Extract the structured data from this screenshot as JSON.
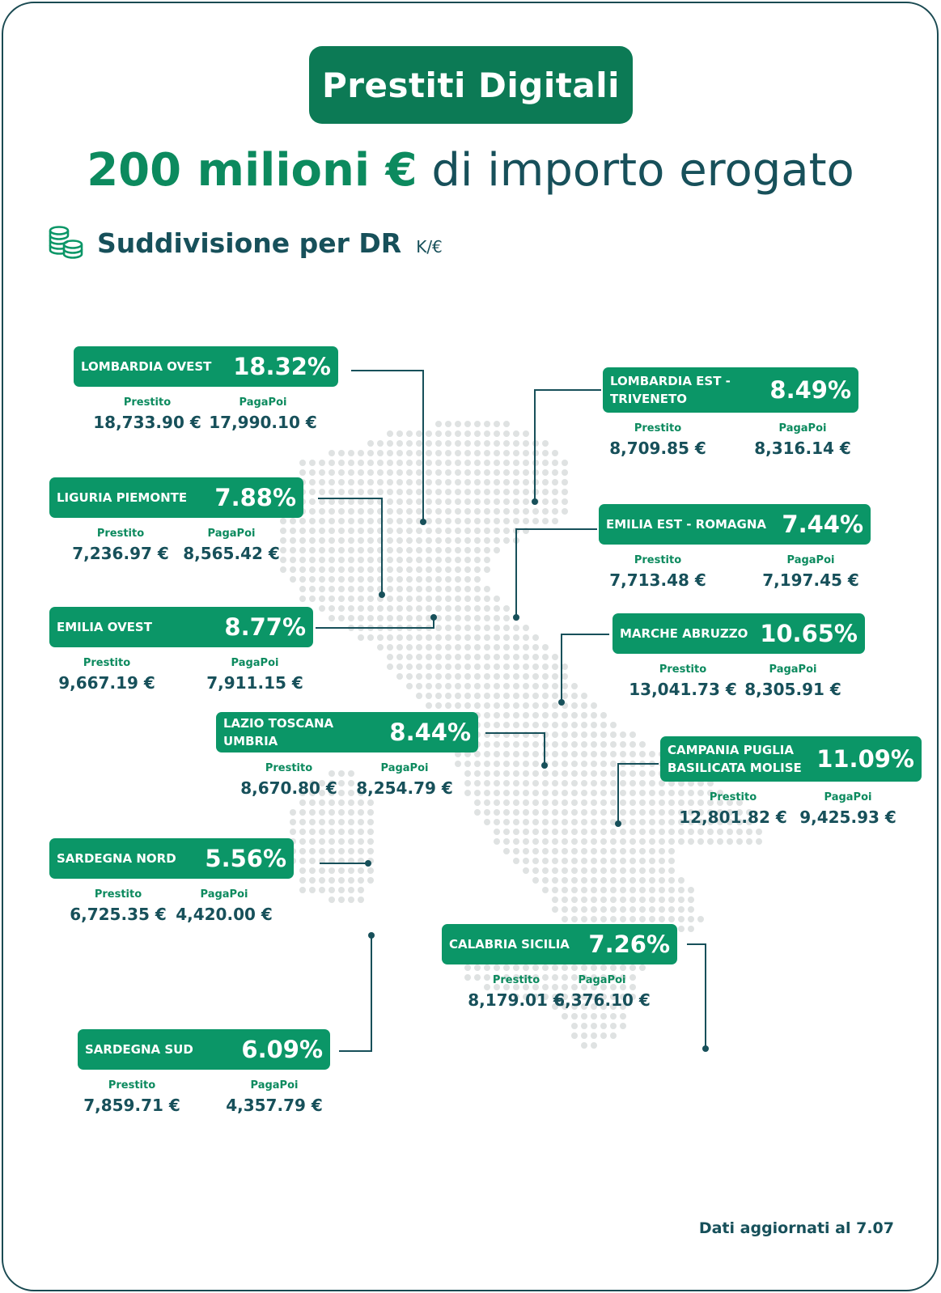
{
  "title": "Prestiti Digitali",
  "headline": {
    "strong": "200 milioni €",
    "rest": " di importo erogato"
  },
  "subtitle": {
    "label": "Suddivisione per DR",
    "unit": "K/€",
    "icon": "coins-icon"
  },
  "column_labels": {
    "loan": "Prestito",
    "paylater": "PagaPoi"
  },
  "regions": [
    {
      "name": "LOMBARDIA OVEST",
      "pct": "18.32%",
      "prestito": "18,733.90 €",
      "pagapoi": "17,990.10 €"
    },
    {
      "name": "LOMBARDIA EST - TRIVENETO",
      "pct": "8.49%",
      "prestito": "8,709.85 €",
      "pagapoi": "8,316.14 €"
    },
    {
      "name": "LIGURIA PIEMONTE",
      "pct": "7.88%",
      "prestito": "7,236.97 €",
      "pagapoi": "8,565.42 €"
    },
    {
      "name": "EMILIA EST - ROMAGNA",
      "pct": "7.44%",
      "prestito": "7,713.48 €",
      "pagapoi": "7,197.45 €"
    },
    {
      "name": "EMILIA OVEST",
      "pct": "8.77%",
      "prestito": "9,667.19 €",
      "pagapoi": "7,911.15 €"
    },
    {
      "name": "MARCHE ABRUZZO",
      "pct": "10.65%",
      "prestito": "13,041.73 €",
      "pagapoi": "8,305.91 €"
    },
    {
      "name": "LAZIO TOSCANA UMBRIA",
      "pct": "8.44%",
      "prestito": "8,670.80 €",
      "pagapoi": "8,254.79 €"
    },
    {
      "name": "CAMPANIA PUGLIA BASILICATA MOLISE",
      "pct": "11.09%",
      "prestito": "12,801.82 €",
      "pagapoi": "9,425.93 €"
    },
    {
      "name": "SARDEGNA NORD",
      "pct": "5.56%",
      "prestito": "6,725.35 €",
      "pagapoi": "4,420.00 €"
    },
    {
      "name": "CALABRIA SICILIA",
      "pct": "7.26%",
      "prestito": "8,179.01 €",
      "pagapoi": "6,376.10 €"
    },
    {
      "name": "SARDEGNA SUD",
      "pct": "6.09%",
      "prestito": "7,859.71 €",
      "pagapoi": "4,357.79 €"
    }
  ],
  "footer": "Dati aggiornati al 7.07",
  "colors": {
    "brand_green": "#0b9667",
    "dark_teal": "#17505a",
    "map_dots": "#dfe2e2"
  }
}
